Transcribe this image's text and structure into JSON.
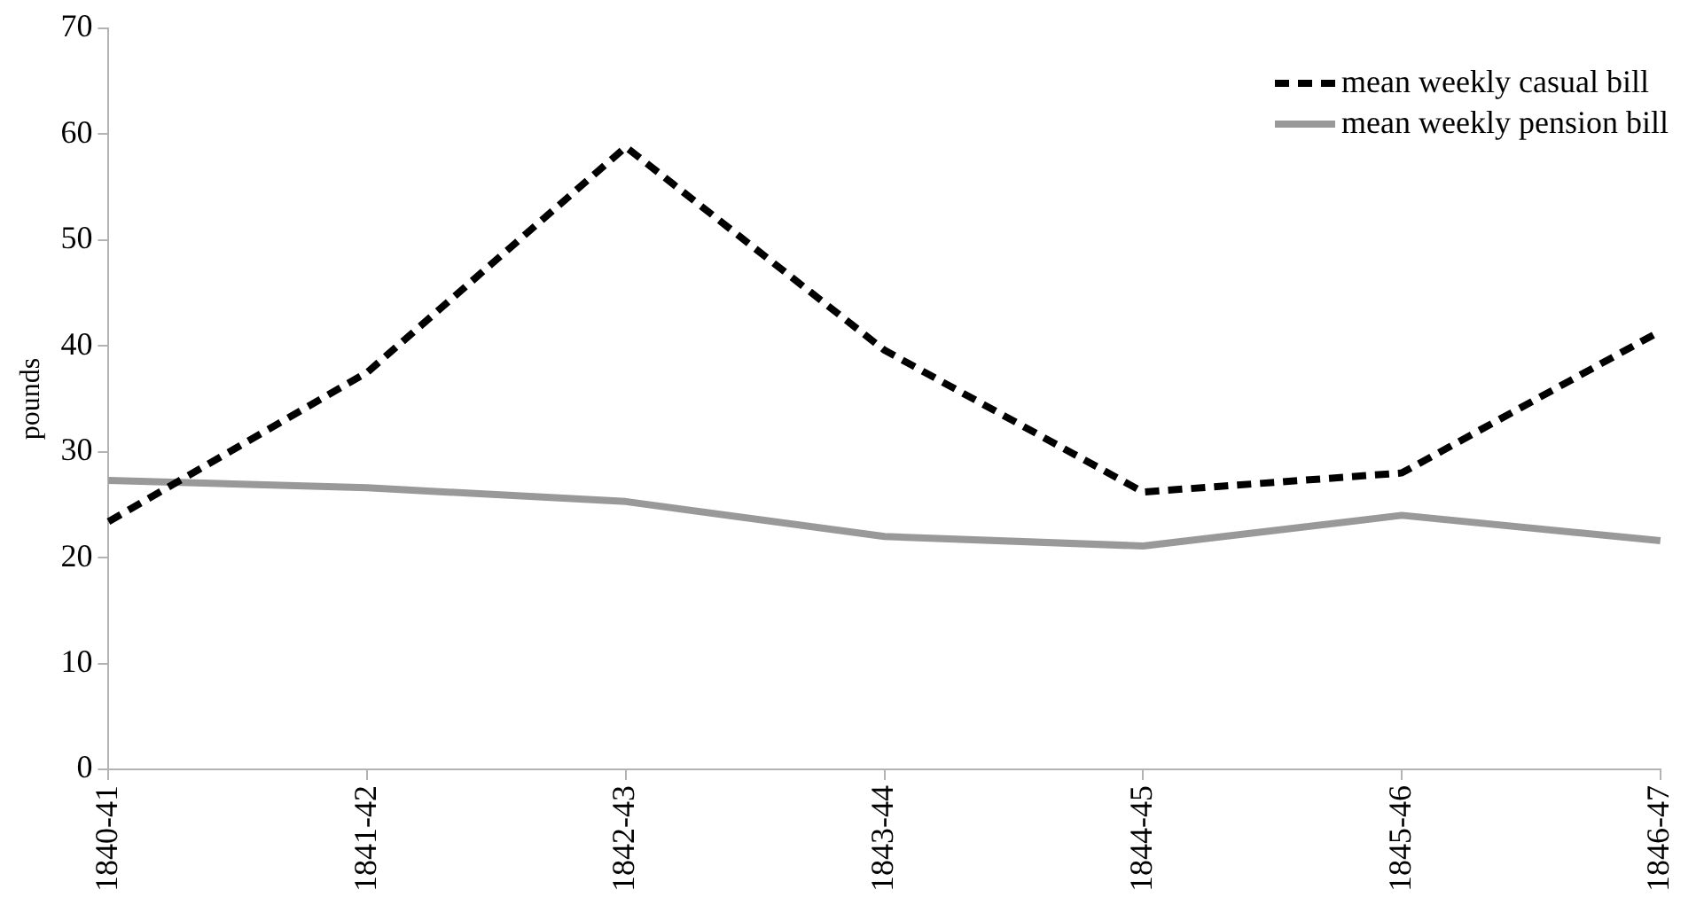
{
  "chart_data": {
    "type": "line",
    "ylabel": "pounds",
    "categories": [
      "1840-41",
      "1841-42",
      "1842-43",
      "1843-44",
      "1844-45",
      "1845-46",
      "1846-47"
    ],
    "series": [
      {
        "name": "mean weekly casual bill",
        "color": "#000000",
        "line_style": "dashed",
        "values": [
          23.4,
          37.5,
          58.8,
          39.6,
          26.2,
          28.0,
          41.4
        ]
      },
      {
        "name": "mean weekly pension bill",
        "color": "#999999",
        "line_style": "solid",
        "values": [
          27.3,
          26.6,
          25.3,
          22.0,
          21.1,
          24.0,
          21.6
        ]
      }
    ],
    "ylim": [
      0,
      70
    ],
    "yticks": [
      0,
      10,
      20,
      30,
      40,
      50,
      60,
      70
    ],
    "grid": false,
    "legend": "top right",
    "marker": "none"
  }
}
